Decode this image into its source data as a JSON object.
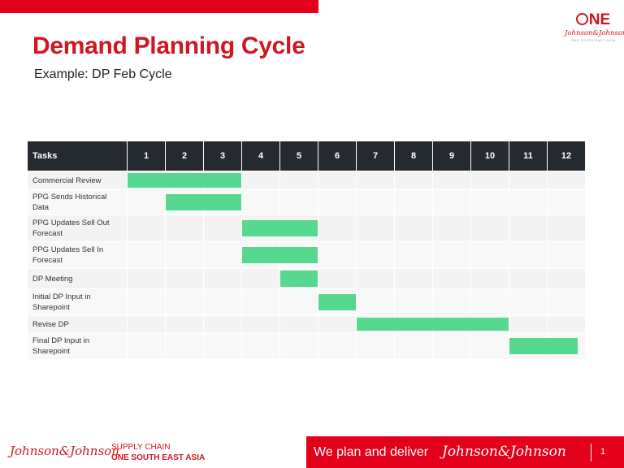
{
  "slide": {
    "title": "Demand Planning Cycle",
    "subtitle": "Example: DP Feb Cycle"
  },
  "logo": {
    "one": "NE",
    "brand": "Johnson&Johnson",
    "tagline": "ONE SOUTH EAST ASIA"
  },
  "gantt": {
    "header_tasks": "Tasks",
    "columns": [
      "1",
      "2",
      "3",
      "4",
      "5",
      "6",
      "7",
      "8",
      "9",
      "10",
      "11",
      "12"
    ],
    "bar_color": "#56d88f",
    "tasks": [
      {
        "name": "Commercial Review",
        "start": 1,
        "end": 3
      },
      {
        "name": "PPG Sends Historical Data",
        "start": 2,
        "end": 3
      },
      {
        "name": "PPG Updates Sell Out Forecast",
        "start": 4,
        "end": 5
      },
      {
        "name": "PPG Updates Sell In Forecast",
        "start": 4,
        "end": 5
      },
      {
        "name": "DP Meeting",
        "start": 5,
        "end": 5
      },
      {
        "name": "Initial DP Input in Sharepoint",
        "start": 6,
        "end": 6
      },
      {
        "name": "Revise DP",
        "start": 7,
        "end": 10
      },
      {
        "name": "Final DP Input in Sharepoint",
        "start": 11,
        "end": 11.8
      }
    ]
  },
  "footer": {
    "brand": "Johnson&Johnson",
    "supply_chain_line1": "SUPPLY CHAIN",
    "supply_chain_line2": "ONE SOUTH EAST ASIA",
    "slogan": "We plan and deliver",
    "slogan_brand": "Johnson&Johnson",
    "page_number": "1"
  },
  "colors": {
    "accent_red": "#e2001a",
    "title_red": "#d0161f",
    "header_dark": "#252a31"
  }
}
